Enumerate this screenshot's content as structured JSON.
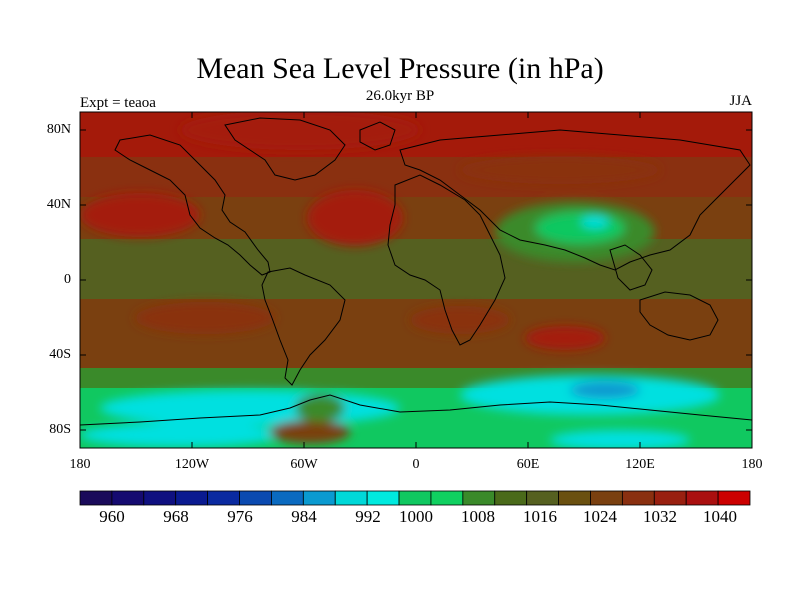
{
  "header": {
    "title": "Mean Sea Level Pressure (in hPa)",
    "subtitle": "26.0kyr BP",
    "left_label": "Expt = teaoa",
    "right_label": "JJA"
  },
  "axes": {
    "lat_ticks": [
      "80N",
      "40N",
      "0",
      "40S",
      "80S"
    ],
    "lon_ticks": [
      "180",
      "120W",
      "60W",
      "0",
      "60E",
      "120E",
      "180"
    ]
  },
  "colorbar": {
    "labels": [
      "960",
      "968",
      "976",
      "984",
      "992",
      "1000",
      "1008",
      "1016",
      "1024",
      "1032",
      "1040"
    ],
    "colors": [
      "#1a0a5a",
      "#150a70",
      "#0f1080",
      "#0a1a90",
      "#0a2aa0",
      "#0a4ab0",
      "#0a6ac0",
      "#0a9ad0",
      "#00d8d8",
      "#00eadf",
      "#10c860",
      "#10d060",
      "#3a8a2a",
      "#4a6a1a",
      "#556020",
      "#6a5010",
      "#7a4010",
      "#8a3010",
      "#992010",
      "#aa1010",
      "#cc0000"
    ]
  },
  "map": {
    "colors": {
      "high": "#a41a0a",
      "mid_high": "#8a3010",
      "mid": "#7a4010",
      "neutral": "#556020",
      "green": "#3a8a2a",
      "light_green": "#10c860",
      "cyan": "#00e0e0",
      "blue": "#0a9ad0",
      "coast": "#000000"
    }
  }
}
